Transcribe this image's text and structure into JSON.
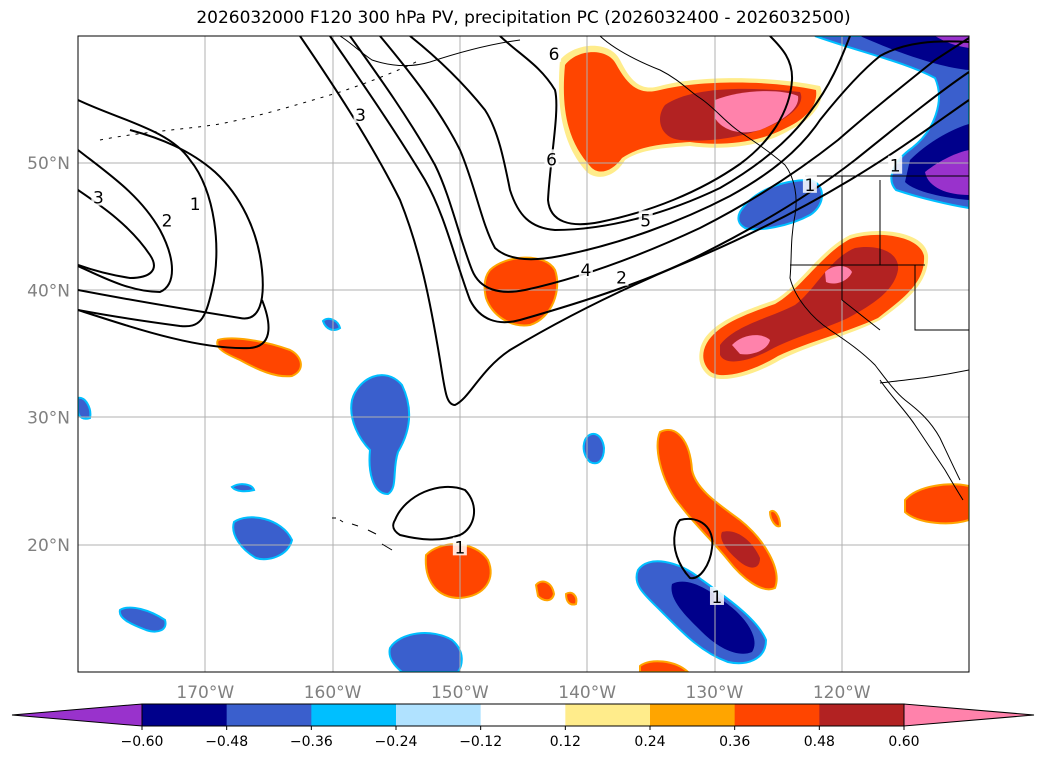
{
  "title": "2026032000 F120 300 hPa PV, precipitation PC (2026032400 - 2026032500)",
  "map": {
    "lon_range": [
      -180,
      -110
    ],
    "lat_range": [
      10,
      60
    ],
    "lat_labels": [
      {
        "lat": 50,
        "text": "50°N"
      },
      {
        "lat": 40,
        "text": "40°N"
      },
      {
        "lat": 30,
        "text": "30°N"
      },
      {
        "lat": 20,
        "text": "20°N"
      }
    ],
    "lon_labels": [
      {
        "lon": -170,
        "text": "170°W"
      },
      {
        "lon": -160,
        "text": "160°W"
      },
      {
        "lon": -150,
        "text": "150°W"
      },
      {
        "lon": -140,
        "text": "140°W"
      },
      {
        "lon": -130,
        "text": "130°W"
      },
      {
        "lon": -120,
        "text": "120°W"
      }
    ],
    "pv_contour_labels": [
      {
        "text": "3",
        "lon": -178.4,
        "lat": 47.3
      },
      {
        "text": "2",
        "lon": -173.0,
        "lat": 45.5
      },
      {
        "text": "1",
        "lon": -170.8,
        "lat": 46.8
      },
      {
        "text": "3",
        "lon": -157.8,
        "lat": 53.8
      },
      {
        "text": "6",
        "lon": -142.6,
        "lat": 58.6
      },
      {
        "text": "6",
        "lon": -142.8,
        "lat": 50.3
      },
      {
        "text": "5",
        "lon": -135.4,
        "lat": 45.5
      },
      {
        "text": "4",
        "lon": -140.1,
        "lat": 41.6
      },
      {
        "text": "2",
        "lon": -137.3,
        "lat": 41.0
      },
      {
        "text": "1",
        "lon": -150.0,
        "lat": 19.8
      },
      {
        "text": "1",
        "lon": -129.8,
        "lat": 15.9
      },
      {
        "text": "1",
        "lon": -122.5,
        "lat": 48.3
      },
      {
        "text": "1",
        "lon": -115.8,
        "lat": 49.8
      }
    ]
  },
  "colorbar": {
    "levels": [
      "−0.60",
      "−0.48",
      "−0.36",
      "−0.24",
      "−0.12",
      "0.12",
      "0.24",
      "0.36",
      "0.48",
      "0.60"
    ],
    "colors": [
      "#9932CC",
      "#00008B",
      "#3A5FCD",
      "#00BFFF",
      "#B0E2FF",
      "#FFFFFF",
      "#FFEC8B",
      "#FFA500",
      "#FF4500",
      "#B22222",
      "#FF82AB"
    ]
  }
}
